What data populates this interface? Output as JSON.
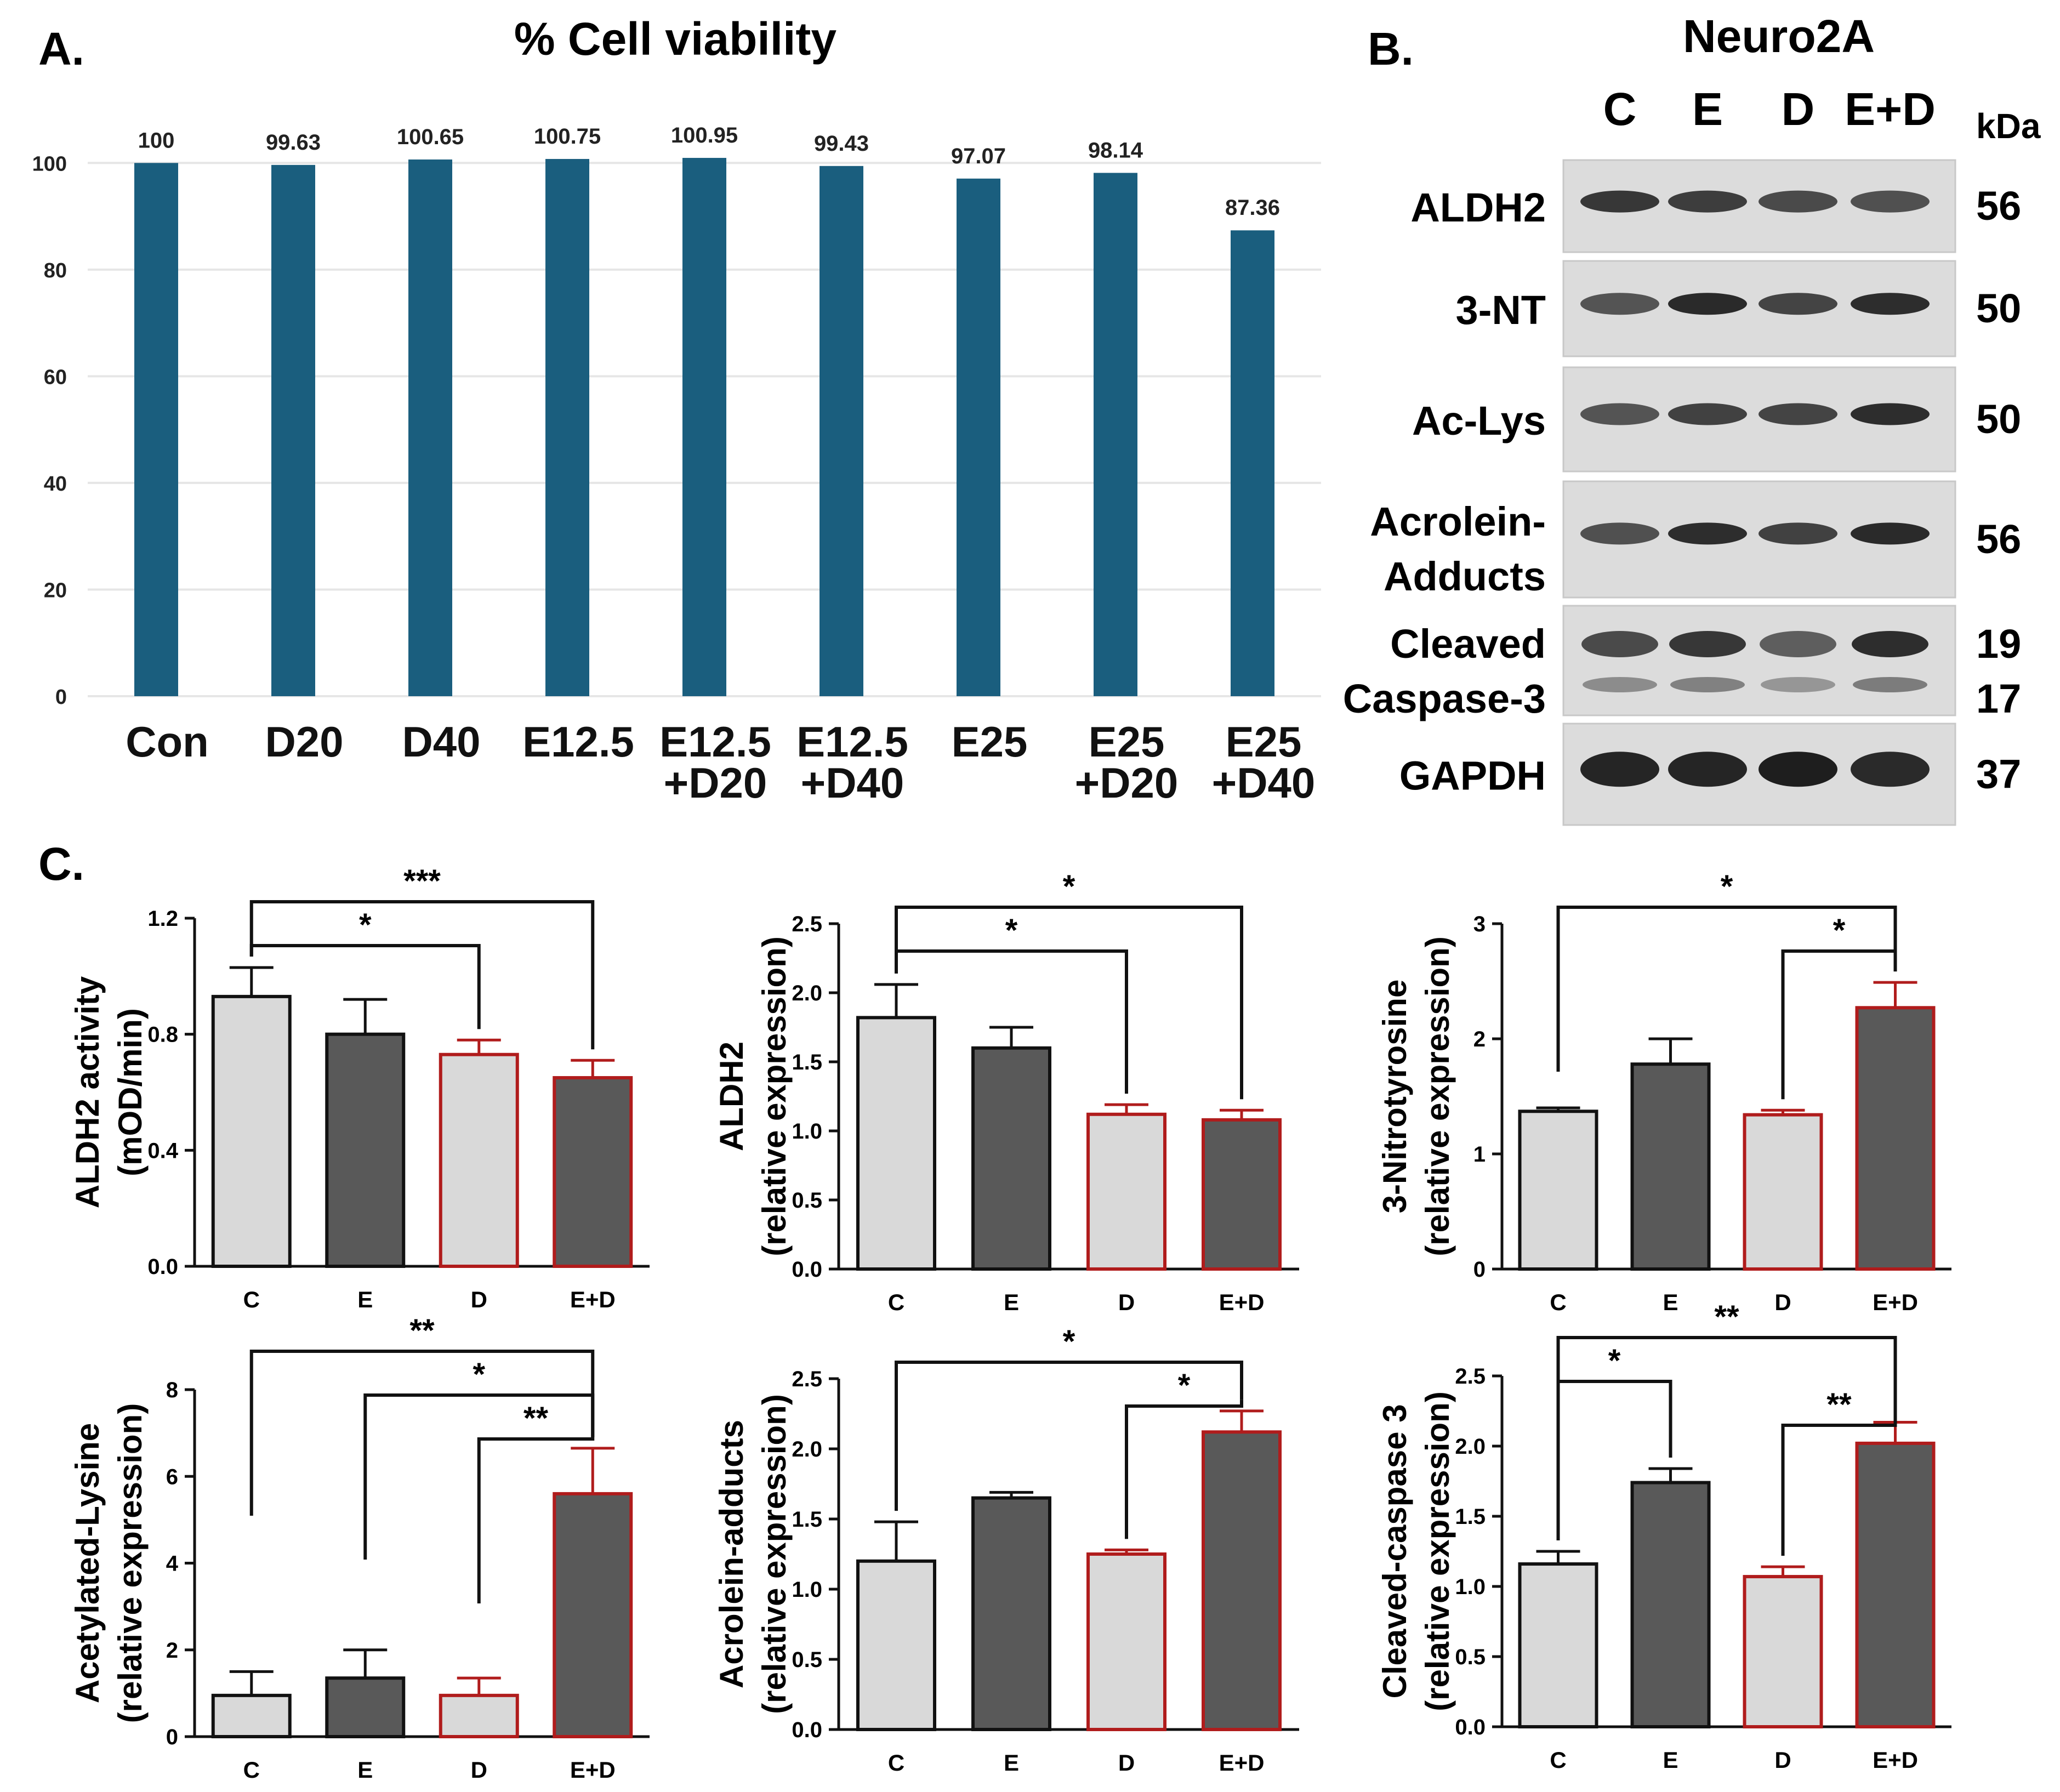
{
  "panelA": {
    "letter": "A.",
    "chart_data": {
      "type": "bar",
      "title": "% Cell viability",
      "categories": [
        [
          "Con"
        ],
        [
          "D20"
        ],
        [
          "D40"
        ],
        [
          "E12.5"
        ],
        [
          "E12.5",
          "+D20"
        ],
        [
          "E12.5",
          "+D40"
        ],
        [
          "E25"
        ],
        [
          "E25",
          "+D20"
        ],
        [
          "E25",
          "+D40"
        ]
      ],
      "values": [
        100,
        99.63,
        100.65,
        100.75,
        100.95,
        99.43,
        97.07,
        98.14,
        87.36
      ],
      "value_labels": [
        "100",
        "99.63",
        "100.65",
        "100.75",
        "100.95",
        "99.43",
        "97.07",
        "98.14",
        "87.36"
      ],
      "ylim": [
        0,
        110
      ],
      "yticks": [
        "0",
        "20",
        "40",
        "60",
        "80",
        "100"
      ],
      "grid": true,
      "xlabel": "",
      "ylabel": "",
      "bar_color": "#1a5e7e"
    }
  },
  "panelB": {
    "letter": "B.",
    "title": "Neuro2A",
    "lanes": [
      "C",
      "E",
      "D",
      "E+D"
    ],
    "kda_header": "kDa",
    "blots": [
      {
        "label_lines": [
          "ALDH2"
        ],
        "kda": [
          "56"
        ],
        "intensity": [
          0.85,
          0.82,
          0.75,
          0.72
        ]
      },
      {
        "label_lines": [
          "3-NT"
        ],
        "kda": [
          "50"
        ],
        "intensity": [
          0.7,
          0.92,
          0.78,
          0.9
        ]
      },
      {
        "label_lines": [
          "Ac-Lys"
        ],
        "kda": [
          "50"
        ],
        "intensity": [
          0.7,
          0.8,
          0.78,
          0.9
        ]
      },
      {
        "label_lines": [
          "Acrolein-",
          "Adducts"
        ],
        "kda": [
          "56"
        ],
        "intensity": [
          0.72,
          0.9,
          0.8,
          0.92
        ]
      },
      {
        "label_lines": [
          "Cleaved",
          "Caspase-3"
        ],
        "kda": [
          "19",
          "17"
        ],
        "intensity": [
          0.75,
          0.85,
          0.65,
          0.9
        ]
      },
      {
        "label_lines": [
          "GAPDH"
        ],
        "kda": [
          "37"
        ],
        "intensity": [
          0.95,
          0.95,
          0.98,
          0.92
        ]
      }
    ]
  },
  "panelC": {
    "letter": "C.",
    "colors": {
      "control_fill": "#d9d9d9",
      "treated_fill": "#595959",
      "black_edge": "#111111",
      "red_edge": "#b01c1c"
    },
    "chart_data": [
      {
        "type": "bar",
        "categories": [
          "C",
          "E",
          "D",
          "E+D"
        ],
        "values": [
          0.93,
          0.8,
          0.73,
          0.65
        ],
        "errors": [
          0.1,
          0.12,
          0.05,
          0.06
        ],
        "ylabel": [
          "ALDH2 activity",
          "(mOD/min)"
        ],
        "ylim": [
          0,
          1.2
        ],
        "yticks": [
          "0.0",
          "0.4",
          "0.8",
          "1.2"
        ],
        "significance": [
          {
            "from": 0,
            "to": 3,
            "label": "***"
          },
          {
            "from": 0,
            "to": 2,
            "label": "*"
          }
        ]
      },
      {
        "type": "bar",
        "categories": [
          "C",
          "E",
          "D",
          "E+D"
        ],
        "values": [
          1.82,
          1.6,
          1.12,
          1.08
        ],
        "errors": [
          0.24,
          0.15,
          0.07,
          0.07
        ],
        "ylabel": [
          "ALDH2",
          "(relative expression)"
        ],
        "ylim": [
          0,
          2.5
        ],
        "yticks": [
          "0.0",
          "0.5",
          "1.0",
          "1.5",
          "2.0",
          "2.5"
        ],
        "significance": [
          {
            "from": 0,
            "to": 3,
            "label": "*"
          },
          {
            "from": 0,
            "to": 2,
            "label": "*"
          }
        ]
      },
      {
        "type": "bar",
        "categories": [
          "C",
          "E",
          "D",
          "E+D"
        ],
        "values": [
          1.37,
          1.78,
          1.34,
          2.27
        ],
        "errors": [
          0.03,
          0.22,
          0.04,
          0.22
        ],
        "ylabel": [
          "3-Nitrotyrosine",
          "(relative expression)"
        ],
        "ylim": [
          0,
          3
        ],
        "yticks": [
          "0",
          "1",
          "2",
          "3"
        ],
        "significance": [
          {
            "from": 0,
            "to": 3,
            "label": "*"
          },
          {
            "from": 2,
            "to": 3,
            "label": "*"
          }
        ]
      },
      {
        "type": "bar",
        "categories": [
          "C",
          "E",
          "D",
          "E+D"
        ],
        "values": [
          0.95,
          1.35,
          0.95,
          5.6
        ],
        "errors": [
          0.55,
          0.65,
          0.4,
          1.05
        ],
        "ylabel": [
          "Acetylated-Lysine",
          "(relative expression)"
        ],
        "ylim": [
          0,
          8
        ],
        "yticks": [
          "0",
          "2",
          "4",
          "6",
          "8"
        ],
        "significance": [
          {
            "from": 0,
            "to": 3,
            "label": "**"
          },
          {
            "from": 1,
            "to": 3,
            "label": "*"
          },
          {
            "from": 2,
            "to": 3,
            "label": "**"
          }
        ]
      },
      {
        "type": "bar",
        "categories": [
          "C",
          "E",
          "D",
          "E+D"
        ],
        "values": [
          1.2,
          1.65,
          1.25,
          2.12
        ],
        "errors": [
          0.28,
          0.04,
          0.03,
          0.15
        ],
        "ylabel": [
          "Acrolein-adducts",
          "(relative expression)"
        ],
        "ylim": [
          0,
          2.5
        ],
        "yticks": [
          "0.0",
          "0.5",
          "1.0",
          "1.5",
          "2.0",
          "2.5"
        ],
        "significance": [
          {
            "from": 0,
            "to": 3,
            "label": "*"
          },
          {
            "from": 2,
            "to": 3,
            "label": "*"
          }
        ]
      },
      {
        "type": "bar",
        "categories": [
          "C",
          "E",
          "D",
          "E+D"
        ],
        "values": [
          1.16,
          1.74,
          1.07,
          2.02
        ],
        "errors": [
          0.09,
          0.1,
          0.07,
          0.15
        ],
        "ylabel": [
          "Cleaved-caspase 3",
          "(relative expression)"
        ],
        "ylim": [
          0,
          2.5
        ],
        "yticks": [
          "0.0",
          "0.5",
          "1.0",
          "1.5",
          "2.0",
          "2.5"
        ],
        "significance": [
          {
            "from": 0,
            "to": 3,
            "label": "**"
          },
          {
            "from": 0,
            "to": 1,
            "label": "*"
          },
          {
            "from": 2,
            "to": 3,
            "label": "**"
          }
        ]
      }
    ]
  }
}
